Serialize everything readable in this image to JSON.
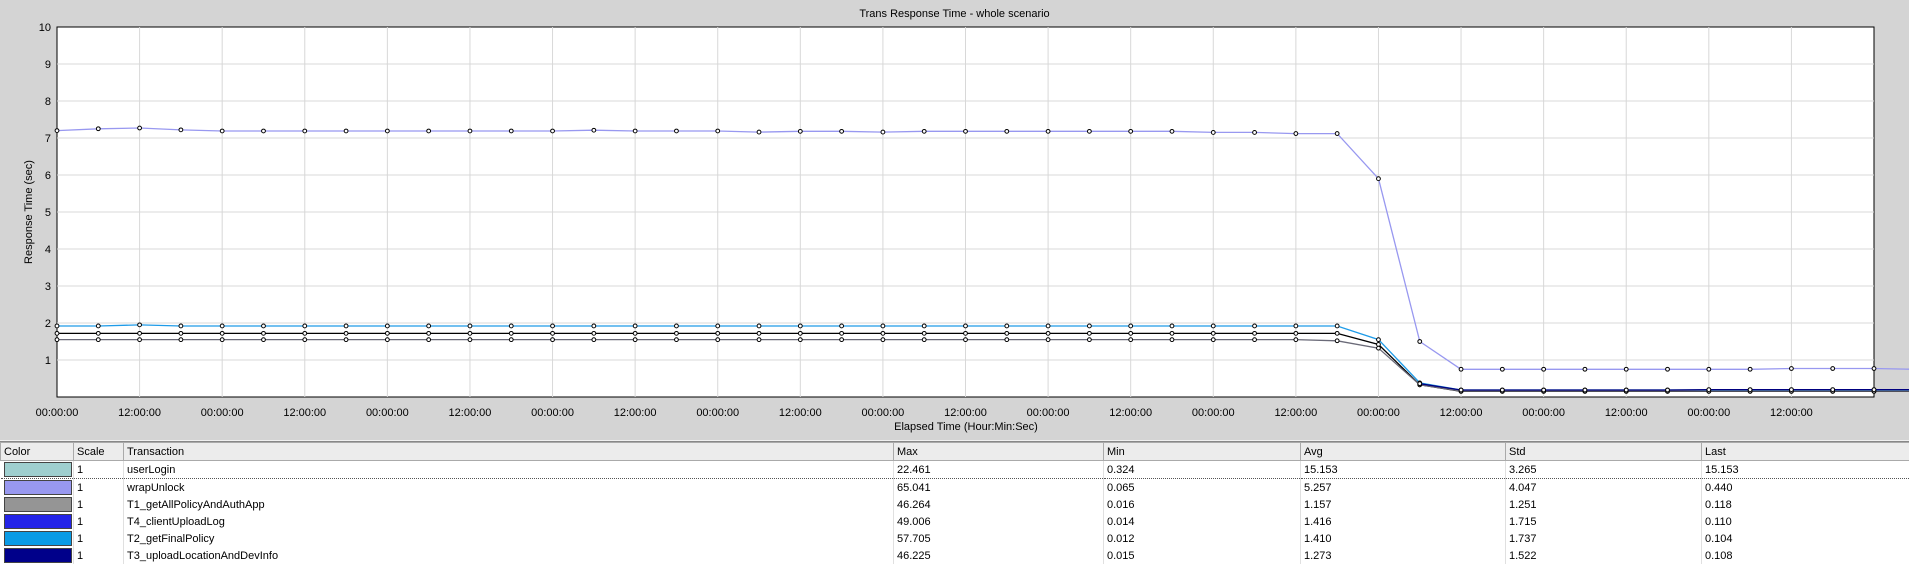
{
  "chart_data": {
    "type": "line",
    "title": "Trans Response Time - whole scenario",
    "xlabel": "Elapsed Time (Hour:Min:Sec)",
    "ylabel": "Response Time (sec)",
    "ylim": [
      0,
      10
    ],
    "yticks": [
      1,
      2,
      3,
      4,
      5,
      6,
      7,
      8,
      9,
      10
    ],
    "xticks": [
      "00:00:00",
      "12:00:00",
      "00:00:00",
      "12:00:00",
      "00:00:00",
      "12:00:00",
      "00:00:00",
      "12:00:00",
      "00:00:00",
      "12:00:00",
      "00:00:00",
      "12:00:00",
      "00:00:00",
      "12:00:00",
      "00:00:00",
      "12:00:00",
      "00:00:00",
      "12:00:00",
      "00:00:00",
      "12:00:00",
      "00:00:00",
      "12:00:00"
    ],
    "x": [
      0,
      1,
      2,
      3,
      4,
      5,
      6,
      7,
      8,
      9,
      10,
      11,
      12,
      13,
      14,
      15,
      16,
      17,
      18,
      19,
      20,
      21,
      22,
      23,
      24,
      25,
      26,
      27,
      28,
      29,
      30,
      31,
      32,
      33,
      34,
      35,
      36,
      37,
      38,
      39,
      40,
      41,
      42,
      43,
      44,
      45,
      46,
      47,
      48
    ],
    "series": [
      {
        "name": "wrapUnlock",
        "color": "#9898f0",
        "values": [
          7.2,
          7.25,
          7.27,
          7.22,
          7.19,
          7.19,
          7.19,
          7.19,
          7.19,
          7.19,
          7.19,
          7.19,
          7.19,
          7.21,
          7.19,
          7.19,
          7.19,
          7.16,
          7.18,
          7.18,
          7.16,
          7.18,
          7.18,
          7.18,
          7.18,
          7.18,
          7.18,
          7.18,
          7.15,
          7.15,
          7.12,
          7.12,
          5.9,
          1.5,
          0.75,
          0.75,
          0.75,
          0.75,
          0.75,
          0.75,
          0.75,
          0.75,
          0.77,
          0.77,
          0.77,
          0.75,
          0.62,
          0.47,
          0.42
        ]
      },
      {
        "name": "T2_getFinalPolicy",
        "color": "#1e9be8",
        "values": [
          1.92,
          1.92,
          1.95,
          1.92,
          1.92,
          1.92,
          1.92,
          1.92,
          1.92,
          1.92,
          1.92,
          1.92,
          1.92,
          1.92,
          1.92,
          1.92,
          1.92,
          1.92,
          1.92,
          1.92,
          1.92,
          1.92,
          1.92,
          1.92,
          1.92,
          1.92,
          1.92,
          1.92,
          1.92,
          1.92,
          1.92,
          1.92,
          1.55,
          0.38,
          0.19,
          0.19,
          0.19,
          0.19,
          0.19,
          0.19,
          0.19,
          0.19,
          0.19,
          0.19,
          0.19,
          0.19,
          0.16,
          0.12,
          0.12
        ]
      },
      {
        "name": "userLogin",
        "color": "#000000",
        "values": [
          1.72,
          1.72,
          1.72,
          1.72,
          1.72,
          1.72,
          1.72,
          1.72,
          1.72,
          1.72,
          1.72,
          1.72,
          1.72,
          1.72,
          1.72,
          1.72,
          1.72,
          1.72,
          1.72,
          1.72,
          1.72,
          1.72,
          1.72,
          1.72,
          1.72,
          1.72,
          1.72,
          1.72,
          1.72,
          1.72,
          1.72,
          1.72,
          1.42,
          0.33,
          0.15,
          0.15,
          0.15,
          0.15,
          0.15,
          0.15,
          0.15,
          0.15,
          0.15,
          0.15,
          0.15,
          0.15,
          0.12,
          0.09,
          0.09
        ]
      },
      {
        "name": "T1_getAllPolicyAndAuthApp",
        "color": "#6a6a78",
        "values": [
          1.55,
          1.55,
          1.55,
          1.55,
          1.55,
          1.55,
          1.55,
          1.55,
          1.55,
          1.55,
          1.55,
          1.55,
          1.55,
          1.55,
          1.55,
          1.55,
          1.55,
          1.55,
          1.55,
          1.55,
          1.55,
          1.55,
          1.55,
          1.55,
          1.55,
          1.55,
          1.55,
          1.55,
          1.55,
          1.55,
          1.55,
          1.52,
          1.32,
          0.33,
          0.16,
          0.16,
          0.16,
          0.16,
          0.16,
          0.16,
          0.16,
          0.16,
          0.16,
          0.16,
          0.16,
          0.16,
          0.14,
          0.11,
          0.11
        ]
      },
      {
        "name": "T3_uploadLocationAndDevInfo",
        "color": "#000080",
        "values": [
          null,
          null,
          null,
          null,
          null,
          null,
          null,
          null,
          null,
          null,
          null,
          null,
          null,
          null,
          null,
          null,
          null,
          null,
          null,
          null,
          null,
          null,
          null,
          null,
          null,
          null,
          null,
          null,
          null,
          null,
          null,
          null,
          null,
          0.36,
          0.19,
          0.19,
          0.19,
          0.19,
          0.19,
          0.19,
          0.2,
          0.2,
          0.2,
          0.2,
          0.2,
          0.2,
          0.17,
          0.13,
          0.13
        ]
      }
    ]
  },
  "table": {
    "headers": {
      "color": "Color",
      "scale": "Scale",
      "transaction": "Transaction",
      "max": "Max",
      "min": "Min",
      "avg": "Avg",
      "std": "Std",
      "last": "Last"
    },
    "rows": [
      {
        "color": "#9fcfcf",
        "scale": "1",
        "transaction": "userLogin",
        "max": "22.461",
        "min": "0.324",
        "avg": "15.153",
        "std": "3.265",
        "last": "15.153"
      },
      {
        "color": "#9898f0",
        "scale": "1",
        "transaction": "wrapUnlock",
        "max": "65.041",
        "min": "0.065",
        "avg": "5.257",
        "std": "4.047",
        "last": "0.440"
      },
      {
        "color": "#959595",
        "scale": "1",
        "transaction": "T1_getAllPolicyAndAuthApp",
        "max": "46.264",
        "min": "0.016",
        "avg": "1.157",
        "std": "1.251",
        "last": "0.118"
      },
      {
        "color": "#2424e8",
        "scale": "1",
        "transaction": "T4_clientUploadLog",
        "max": "49.006",
        "min": "0.014",
        "avg": "1.416",
        "std": "1.715",
        "last": "0.110"
      },
      {
        "color": "#0a9be6",
        "scale": "1",
        "transaction": "T2_getFinalPolicy",
        "max": "57.705",
        "min": "0.012",
        "avg": "1.410",
        "std": "1.737",
        "last": "0.104"
      },
      {
        "color": "#00008a",
        "scale": "1",
        "transaction": "T3_uploadLocationAndDevInfo",
        "max": "46.225",
        "min": "0.015",
        "avg": "1.273",
        "std": "1.522",
        "last": "0.108"
      }
    ]
  }
}
